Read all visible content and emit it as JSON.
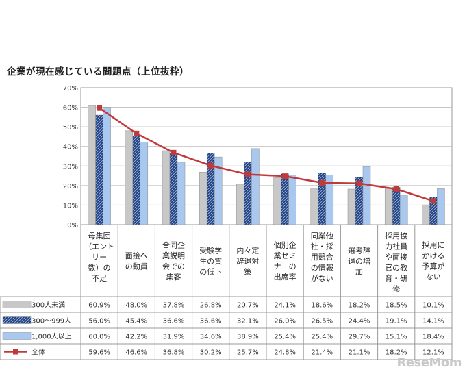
{
  "chart_data": {
    "type": "bar",
    "title": "企業が現在感じている問題点（上位抜粋）",
    "ylim": [
      0,
      70
    ],
    "yticks": [
      "0%",
      "10%",
      "20%",
      "30%",
      "40%",
      "50%",
      "60%",
      "70%"
    ],
    "categories": [
      [
        "母集団",
        "（エント",
        "リー",
        "数）の",
        "不足"
      ],
      [
        "面接へ",
        "の動員"
      ],
      [
        "合同企",
        "業説明",
        "会での",
        "集客"
      ],
      [
        "受験学",
        "生の質",
        "の低下"
      ],
      [
        "内々定",
        "辞退対",
        "策"
      ],
      [
        "個別企",
        "業セミ",
        "ナーの",
        "出席率"
      ],
      [
        "同業他",
        "社・採",
        "用競合",
        "の情報",
        "がない"
      ],
      [
        "選考辞",
        "退の増",
        "加"
      ],
      [
        "採用協",
        "力社員",
        "や面接",
        "官の教",
        "育・研",
        "修"
      ],
      [
        "採用に",
        "かける",
        "予算が",
        "ない"
      ]
    ],
    "series": [
      {
        "name": "300人未満",
        "kind": "bar",
        "color": "#c8c8c8",
        "values": [
          60.9,
          48.0,
          37.8,
          26.8,
          20.7,
          24.1,
          18.6,
          18.2,
          18.5,
          10.1
        ],
        "labels": [
          "60.9%",
          "48.0%",
          "37.8%",
          "26.8%",
          "20.7%",
          "24.1%",
          "18.6%",
          "18.2%",
          "18.5%",
          "10.1%"
        ]
      },
      {
        "name": "300～999人",
        "kind": "bar-hatched",
        "color": "#2e4a8a",
        "values": [
          56.0,
          45.4,
          36.6,
          36.6,
          32.1,
          26.0,
          26.5,
          24.4,
          19.1,
          14.1
        ],
        "labels": [
          "56.0%",
          "45.4%",
          "36.6%",
          "36.6%",
          "32.1%",
          "26.0%",
          "26.5%",
          "24.4%",
          "19.1%",
          "14.1%"
        ]
      },
      {
        "name": "1,000人以上",
        "kind": "bar",
        "color": "#a9c8ef",
        "values": [
          60.0,
          42.2,
          31.9,
          34.6,
          38.9,
          25.4,
          25.4,
          29.7,
          15.1,
          18.4
        ],
        "labels": [
          "60.0%",
          "42.2%",
          "31.9%",
          "34.6%",
          "38.9%",
          "25.4%",
          "25.4%",
          "29.7%",
          "15.1%",
          "18.4%"
        ]
      },
      {
        "name": "全体",
        "kind": "line",
        "color": "#c0393b",
        "values": [
          59.6,
          46.6,
          36.8,
          30.2,
          25.7,
          24.8,
          21.4,
          21.1,
          18.2,
          12.1
        ],
        "labels": [
          "59.6%",
          "46.6%",
          "36.8%",
          "30.2%",
          "25.7%",
          "24.8%",
          "21.4%",
          "21.1%",
          "18.2%",
          "12.1%"
        ]
      }
    ],
    "grid": true,
    "legend": "data-table"
  },
  "watermark": "ReseMom"
}
